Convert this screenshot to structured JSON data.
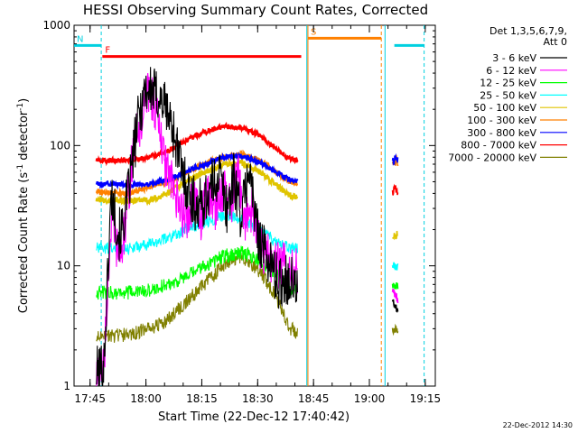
{
  "chart_data": {
    "type": "line",
    "title": "HESSI Observing Summary Count Rates, Corrected",
    "xlabel": "Start Time (22-Dec-12 17:40:42)",
    "ylabel_main": "Corrected Count Rate (s",
    "ylabel_sup1": "-1",
    "ylabel_mid": " detector",
    "ylabel_sup2": "-1",
    "ylabel_end": ")",
    "yscale": "log",
    "ylim": [
      1,
      1000
    ],
    "xlim_minutes_from_17_40_42": [
      0,
      97
    ],
    "x_ticks": [
      {
        "label": "17:45",
        "t": 4.3
      },
      {
        "label": "18:00",
        "t": 19.3
      },
      {
        "label": "18:15",
        "t": 34.3
      },
      {
        "label": "18:30",
        "t": 49.3
      },
      {
        "label": "18:45",
        "t": 64.3
      },
      {
        "label": "19:00",
        "t": 79.3
      },
      {
        "label": "19:15",
        "t": 94.3
      }
    ],
    "y_ticks": [
      {
        "label": "1",
        "v": 1
      },
      {
        "label": "10",
        "v": 10
      },
      {
        "label": "100",
        "v": 100
      },
      {
        "label": "1000",
        "v": 1000
      }
    ],
    "legend_header": [
      "Det 1,3,5,6,7,9,",
      "Att 0"
    ],
    "legend_position": "right",
    "series": [
      {
        "name": "3 - 6 keV",
        "color": "#000000",
        "data": [
          [
            6,
            1.3
          ],
          [
            8,
            1.5
          ],
          [
            10,
            40
          ],
          [
            12,
            18
          ],
          [
            13,
            20
          ],
          [
            15,
            50
          ],
          [
            17,
            150
          ],
          [
            19,
            300
          ],
          [
            21,
            280
          ],
          [
            23,
            250
          ],
          [
            25,
            200
          ],
          [
            27,
            120
          ],
          [
            29,
            60
          ],
          [
            31,
            40
          ],
          [
            33,
            30
          ],
          [
            35,
            35
          ],
          [
            37,
            45
          ],
          [
            39,
            60
          ],
          [
            41,
            30
          ],
          [
            43,
            55
          ],
          [
            45,
            25
          ],
          [
            47,
            70
          ],
          [
            49,
            20
          ],
          [
            51,
            14
          ],
          [
            53,
            10
          ],
          [
            55,
            7
          ],
          [
            57,
            8
          ],
          [
            59,
            7
          ],
          [
            60,
            6
          ]
        ]
      },
      {
        "name": "6 - 12 keV",
        "color": "#ff00ff",
        "data": [
          [
            6,
            1.2
          ],
          [
            8,
            1.5
          ],
          [
            10,
            25
          ],
          [
            12,
            12
          ],
          [
            13,
            14
          ],
          [
            14,
            25
          ],
          [
            16,
            100
          ],
          [
            18,
            150
          ],
          [
            20,
            300
          ],
          [
            22,
            200
          ],
          [
            24,
            80
          ],
          [
            26,
            50
          ],
          [
            28,
            30
          ],
          [
            30,
            25
          ],
          [
            32,
            35
          ],
          [
            34,
            25
          ],
          [
            36,
            40
          ],
          [
            38,
            30
          ],
          [
            40,
            45
          ],
          [
            42,
            30
          ],
          [
            44,
            60
          ],
          [
            46,
            25
          ],
          [
            48,
            30
          ],
          [
            50,
            14
          ],
          [
            52,
            12
          ],
          [
            54,
            10
          ],
          [
            56,
            10
          ],
          [
            58,
            10
          ],
          [
            60,
            9
          ]
        ]
      },
      {
        "name": "12 - 25 keV",
        "color": "#00ff00",
        "data": [
          [
            6,
            6
          ],
          [
            10,
            6
          ],
          [
            15,
            6
          ],
          [
            20,
            6.2
          ],
          [
            25,
            7
          ],
          [
            30,
            8
          ],
          [
            35,
            10
          ],
          [
            40,
            12
          ],
          [
            45,
            13
          ],
          [
            50,
            11
          ],
          [
            55,
            8
          ],
          [
            58,
            6.5
          ],
          [
            60,
            6.5
          ]
        ]
      },
      {
        "name": "25 - 50 keV",
        "color": "#00ffff",
        "data": [
          [
            6,
            14
          ],
          [
            10,
            14
          ],
          [
            15,
            14
          ],
          [
            20,
            15
          ],
          [
            25,
            17
          ],
          [
            30,
            20
          ],
          [
            35,
            23
          ],
          [
            40,
            26
          ],
          [
            45,
            25
          ],
          [
            50,
            20
          ],
          [
            55,
            15
          ],
          [
            58,
            14
          ],
          [
            60,
            14
          ]
        ]
      },
      {
        "name": "50 - 100 keV",
        "color": "#e0c400",
        "data": [
          [
            6,
            35
          ],
          [
            10,
            35
          ],
          [
            15,
            35
          ],
          [
            20,
            35
          ],
          [
            25,
            40
          ],
          [
            30,
            50
          ],
          [
            35,
            60
          ],
          [
            40,
            70
          ],
          [
            45,
            72
          ],
          [
            50,
            60
          ],
          [
            55,
            45
          ],
          [
            58,
            38
          ],
          [
            60,
            37
          ]
        ]
      },
      {
        "name": "100 - 300 keV",
        "color": "#ff8000",
        "data": [
          [
            6,
            42
          ],
          [
            10,
            40
          ],
          [
            15,
            40
          ],
          [
            20,
            45
          ],
          [
            25,
            50
          ],
          [
            30,
            60
          ],
          [
            35,
            70
          ],
          [
            40,
            80
          ],
          [
            45,
            85
          ],
          [
            50,
            75
          ],
          [
            55,
            58
          ],
          [
            58,
            50
          ],
          [
            60,
            48
          ]
        ]
      },
      {
        "name": "300 - 800 keV",
        "color": "#0000ff",
        "data": [
          [
            6,
            48
          ],
          [
            10,
            48
          ],
          [
            15,
            47
          ],
          [
            20,
            48
          ],
          [
            25,
            52
          ],
          [
            30,
            60
          ],
          [
            35,
            70
          ],
          [
            40,
            80
          ],
          [
            45,
            82
          ],
          [
            50,
            72
          ],
          [
            55,
            58
          ],
          [
            58,
            52
          ],
          [
            60,
            50
          ]
        ]
      },
      {
        "name": "800 - 7000 keV",
        "color": "#ff0000",
        "data": [
          [
            6,
            75
          ],
          [
            10,
            75
          ],
          [
            15,
            75
          ],
          [
            20,
            80
          ],
          [
            25,
            90
          ],
          [
            30,
            110
          ],
          [
            35,
            130
          ],
          [
            40,
            145
          ],
          [
            45,
            140
          ],
          [
            50,
            120
          ],
          [
            55,
            90
          ],
          [
            58,
            78
          ],
          [
            60,
            75
          ]
        ]
      },
      {
        "name": "7000 - 20000 keV",
        "color": "#808000",
        "data": [
          [
            6,
            2.5
          ],
          [
            10,
            2.6
          ],
          [
            15,
            2.7
          ],
          [
            20,
            3
          ],
          [
            25,
            3.5
          ],
          [
            30,
            5
          ],
          [
            35,
            7
          ],
          [
            40,
            10
          ],
          [
            45,
            12
          ],
          [
            50,
            9
          ],
          [
            55,
            5
          ],
          [
            58,
            3
          ],
          [
            60,
            2.8
          ]
        ]
      }
    ],
    "late_series": [
      {
        "name": "3 - 6 keV",
        "data": [
          [
            85.5,
            5
          ],
          [
            86.5,
            4.5
          ],
          [
            87,
            4
          ]
        ]
      },
      {
        "name": "6 - 12 keV",
        "data": [
          [
            85.5,
            6
          ],
          [
            86.5,
            5.5
          ],
          [
            87,
            5
          ]
        ]
      },
      {
        "name": "12 - 25 keV",
        "data": [
          [
            85.5,
            7
          ],
          [
            86.5,
            7
          ],
          [
            87,
            7
          ]
        ]
      },
      {
        "name": "25 - 50 keV",
        "data": [
          [
            85.5,
            10
          ],
          [
            86.5,
            10
          ],
          [
            87,
            10
          ]
        ]
      },
      {
        "name": "50 - 100 keV",
        "data": [
          [
            85.5,
            17
          ],
          [
            86.5,
            18
          ],
          [
            87,
            18
          ]
        ]
      },
      {
        "name": "100 - 300 keV",
        "data": [
          [
            85.5,
            70
          ],
          [
            86.5,
            75
          ],
          [
            87,
            72
          ]
        ]
      },
      {
        "name": "300 - 800 keV",
        "data": [
          [
            85.5,
            74
          ],
          [
            86.5,
            76
          ],
          [
            87,
            75
          ]
        ]
      },
      {
        "name": "800 - 7000 keV",
        "data": [
          [
            85.5,
            42
          ],
          [
            86.5,
            44
          ],
          [
            87,
            40
          ]
        ]
      },
      {
        "name": "7000 - 20000 keV",
        "data": [
          [
            85.5,
            3
          ],
          [
            86.5,
            3
          ],
          [
            87,
            3
          ]
        ]
      }
    ],
    "flags": [
      {
        "label": "N",
        "color": "#00d0e0",
        "line_y": 680,
        "t_start": 0,
        "t_end": 7.3
      },
      {
        "label": "F",
        "color": "#ff0000",
        "line_y": 550,
        "t_start": 7.6,
        "t_end": 61
      },
      {
        "label": "S",
        "color": "#ff8000",
        "line_y": 780,
        "t_start": 62.8,
        "t_end": 82.5
      },
      {
        "label": "",
        "color": "#00d0e0",
        "line_y": 680,
        "t_start": 86,
        "t_end": 94
      }
    ],
    "vertical_markers": [
      {
        "t": 7.3,
        "color": "#00d0e0",
        "style": "dashed"
      },
      {
        "t": 62.5,
        "color": "#00d0e0",
        "style": "solid"
      },
      {
        "t": 62.8,
        "color": "#ff8000",
        "style": "solid"
      },
      {
        "t": 82.5,
        "color": "#ff8000",
        "style": "dashed"
      },
      {
        "t": 83.5,
        "color": "#00d0e0",
        "style": "solid"
      },
      {
        "t": 94,
        "color": "#00d0e0",
        "style": "dashed"
      }
    ],
    "footer_date": "22-Dec-2012 14:30"
  }
}
